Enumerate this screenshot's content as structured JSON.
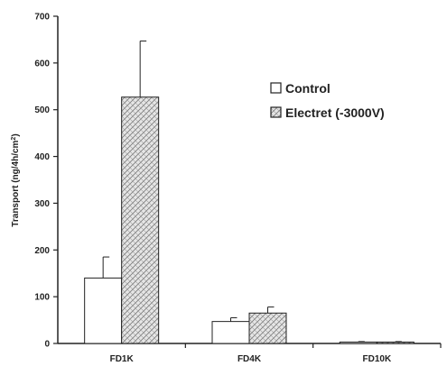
{
  "chart_data": {
    "type": "bar",
    "title": "",
    "xlabel": "",
    "ylabel_main": "Transport (ng/4h/cm",
    "ylabel_sup": "2",
    "ylabel_tail": ")",
    "ylim": [
      0,
      700
    ],
    "yticks": [
      "0",
      "100",
      "200",
      "300",
      "400",
      "500",
      "600",
      "700"
    ],
    "categories": [
      "FD1K",
      "FD4K",
      "FD10K"
    ],
    "series": [
      {
        "name": "Control",
        "values": [
          140,
          47,
          3
        ],
        "errors": [
          45,
          8,
          1
        ],
        "pattern": "none",
        "color": "#ffffff"
      },
      {
        "name": "Electret (-3000V)",
        "values": [
          527,
          65,
          3
        ],
        "errors": [
          120,
          13,
          1
        ],
        "pattern": "crosshatch",
        "color": "#d9d9d9"
      }
    ],
    "legend_position": "center-right",
    "grid": false
  }
}
